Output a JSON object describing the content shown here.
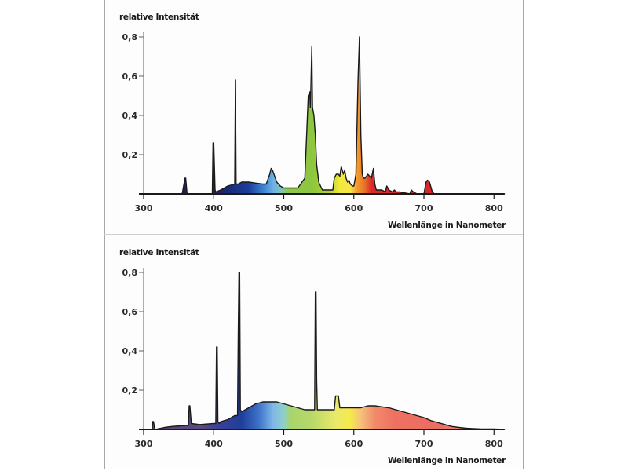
{
  "chart_data": [
    {
      "type": "area",
      "title": "",
      "ylabel": "relative Intensität",
      "xlabel": "Wellenlänge in Nanometer",
      "xlim": [
        300,
        815
      ],
      "ylim": [
        0,
        0.8
      ],
      "xticks": [
        300,
        400,
        500,
        600,
        700,
        800
      ],
      "xtick_labels": [
        "300",
        "400",
        "500",
        "600",
        "700",
        "800"
      ],
      "yticks": [
        0.2,
        0.4,
        0.6,
        0.8
      ],
      "ytick_labels": [
        "0,2",
        "0,4",
        "0,6",
        "0,8"
      ],
      "grid": false,
      "fill": "spectral-colors",
      "series": [
        {
          "name": "spectrum",
          "x": [
            300,
            355,
            359,
            360,
            362,
            363,
            398,
            399,
            400,
            402,
            403,
            410,
            420,
            430,
            431,
            432,
            434,
            435,
            440,
            450,
            460,
            470,
            475,
            480,
            482,
            484,
            490,
            495,
            500,
            520,
            530,
            535,
            537,
            538,
            540,
            541,
            543,
            545,
            547,
            550,
            555,
            570,
            572,
            575,
            578,
            580,
            582,
            585,
            587,
            589,
            591,
            593,
            595,
            598,
            600,
            603,
            606,
            608,
            610,
            611,
            612,
            614,
            616,
            620,
            625,
            628,
            630,
            632,
            640,
            645,
            647,
            650,
            655,
            658,
            660,
            665,
            680,
            682,
            685,
            690,
            700,
            703,
            705,
            708,
            712,
            715,
            740,
            815
          ],
          "y": [
            0.0,
            0.0,
            0.08,
            0.08,
            0.0,
            0.0,
            0.0,
            0.26,
            0.26,
            0.02,
            0.01,
            0.02,
            0.04,
            0.05,
            0.58,
            0.05,
            0.05,
            0.05,
            0.06,
            0.06,
            0.055,
            0.05,
            0.05,
            0.1,
            0.13,
            0.12,
            0.06,
            0.04,
            0.03,
            0.03,
            0.08,
            0.5,
            0.52,
            0.44,
            0.75,
            0.44,
            0.4,
            0.3,
            0.15,
            0.06,
            0.02,
            0.02,
            0.08,
            0.1,
            0.1,
            0.09,
            0.14,
            0.1,
            0.12,
            0.08,
            0.06,
            0.07,
            0.05,
            0.04,
            0.04,
            0.1,
            0.58,
            0.8,
            0.3,
            0.2,
            0.1,
            0.08,
            0.08,
            0.1,
            0.08,
            0.13,
            0.05,
            0.02,
            0.02,
            0.01,
            0.04,
            0.02,
            0.01,
            0.02,
            0.01,
            0.01,
            0.0,
            0.02,
            0.01,
            0.0,
            0.0,
            0.06,
            0.07,
            0.06,
            0.01,
            0.0,
            0.0,
            0.0
          ]
        }
      ]
    },
    {
      "type": "area",
      "title": "",
      "ylabel": "relative Intensität",
      "xlabel": "Wellenlänge in Nanometer",
      "xlim": [
        300,
        815
      ],
      "ylim": [
        0,
        0.8
      ],
      "xticks": [
        300,
        400,
        500,
        600,
        700,
        800
      ],
      "xtick_labels": [
        "300",
        "400",
        "500",
        "600",
        "700",
        "800"
      ],
      "yticks": [
        0.2,
        0.4,
        0.6,
        0.8
      ],
      "ytick_labels": [
        "0,2",
        "0,4",
        "0,6",
        "0,8"
      ],
      "grid": false,
      "fill": "spectral-colors",
      "series": [
        {
          "name": "spectrum",
          "x": [
            300,
            312,
            313,
            314,
            316,
            330,
            340,
            360,
            364,
            365,
            366,
            368,
            380,
            400,
            403,
            404,
            405,
            406,
            408,
            410,
            420,
            430,
            434,
            435,
            436,
            437,
            438,
            440,
            450,
            460,
            470,
            480,
            490,
            500,
            510,
            520,
            530,
            540,
            544,
            545,
            546,
            547,
            548,
            550,
            560,
            572,
            574,
            576,
            578,
            580,
            590,
            600,
            610,
            620,
            630,
            640,
            650,
            660,
            670,
            680,
            690,
            700,
            710,
            720,
            730,
            740,
            750,
            760,
            770,
            780,
            800,
            815
          ],
          "y": [
            0.0,
            0.0,
            0.04,
            0.04,
            0.0,
            0.01,
            0.015,
            0.02,
            0.02,
            0.12,
            0.12,
            0.03,
            0.025,
            0.03,
            0.03,
            0.42,
            0.42,
            0.04,
            0.03,
            0.04,
            0.05,
            0.07,
            0.07,
            0.48,
            0.8,
            0.8,
            0.1,
            0.09,
            0.11,
            0.13,
            0.14,
            0.14,
            0.14,
            0.13,
            0.12,
            0.11,
            0.1,
            0.1,
            0.1,
            0.7,
            0.7,
            0.25,
            0.1,
            0.1,
            0.1,
            0.1,
            0.17,
            0.17,
            0.17,
            0.11,
            0.11,
            0.11,
            0.11,
            0.12,
            0.12,
            0.115,
            0.11,
            0.1,
            0.09,
            0.08,
            0.07,
            0.06,
            0.045,
            0.035,
            0.025,
            0.015,
            0.01,
            0.006,
            0.004,
            0.003,
            0.002,
            0.0
          ]
        }
      ]
    }
  ]
}
